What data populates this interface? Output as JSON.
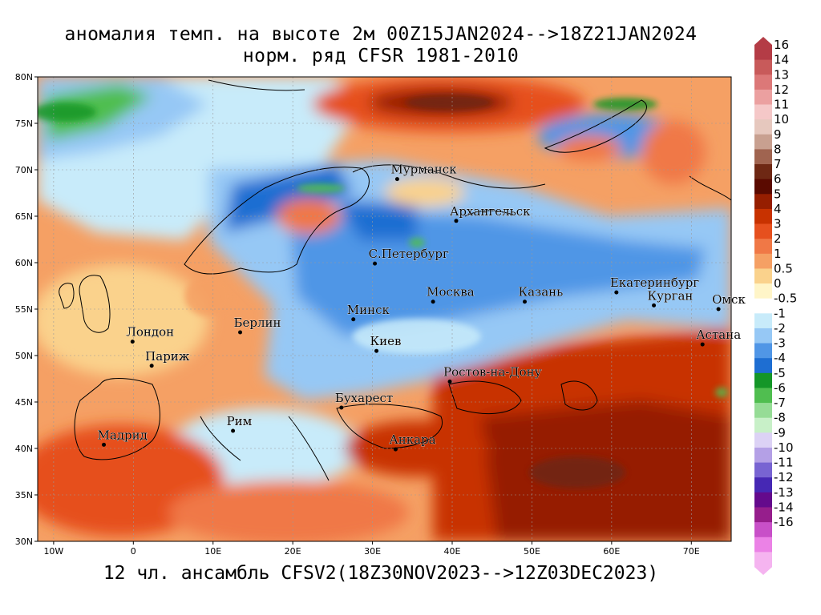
{
  "header": {
    "title_line1": "аномалия темп. на высоте 2м 00Z15JAN2024-->18Z21JAN2024",
    "title_line2": "норм. ряд CFSR 1981-2010"
  },
  "footer": {
    "subtitle": "12 чл. ансамбль CFSV2(18Z30NOV2023-->12Z03DEC2023)"
  },
  "map": {
    "lon_range": [
      -12,
      75
    ],
    "lat_range": [
      30,
      80
    ],
    "lat_ticks": [
      {
        "value": 80,
        "label": "80N"
      },
      {
        "value": 75,
        "label": "75N"
      },
      {
        "value": 70,
        "label": "70N"
      },
      {
        "value": 65,
        "label": "65N"
      },
      {
        "value": 60,
        "label": "60N"
      },
      {
        "value": 55,
        "label": "55N"
      },
      {
        "value": 50,
        "label": "50N"
      },
      {
        "value": 45,
        "label": "45N"
      },
      {
        "value": 40,
        "label": "40N"
      },
      {
        "value": 35,
        "label": "35N"
      },
      {
        "value": 30,
        "label": "30N"
      }
    ],
    "lon_ticks": [
      {
        "value": -10,
        "label": "10W"
      },
      {
        "value": 0,
        "label": "0"
      },
      {
        "value": 10,
        "label": "10E"
      },
      {
        "value": 20,
        "label": "20E"
      },
      {
        "value": 30,
        "label": "30E"
      },
      {
        "value": 40,
        "label": "40E"
      },
      {
        "value": 50,
        "label": "50E"
      },
      {
        "value": 60,
        "label": "60E"
      },
      {
        "value": 70,
        "label": "70E"
      }
    ],
    "cities": [
      {
        "name": "Мурманск",
        "lon": 33.1,
        "lat": 69.0
      },
      {
        "name": "Архангельск",
        "lon": 40.5,
        "lat": 64.5
      },
      {
        "name": "С.Петербург",
        "lon": 30.3,
        "lat": 59.9
      },
      {
        "name": "Москва",
        "lon": 37.6,
        "lat": 55.8
      },
      {
        "name": "Казань",
        "lon": 49.1,
        "lat": 55.8
      },
      {
        "name": "Екатеринбург",
        "lon": 60.6,
        "lat": 56.8
      },
      {
        "name": "Курган",
        "lon": 65.3,
        "lat": 55.4
      },
      {
        "name": "Омск",
        "lon": 73.4,
        "lat": 55.0
      },
      {
        "name": "Астана",
        "lon": 71.4,
        "lat": 51.2
      },
      {
        "name": "Минск",
        "lon": 27.6,
        "lat": 53.9
      },
      {
        "name": "Киев",
        "lon": 30.5,
        "lat": 50.5
      },
      {
        "name": "Берлин",
        "lon": 13.4,
        "lat": 52.5
      },
      {
        "name": "Лондон",
        "lon": -0.1,
        "lat": 51.5
      },
      {
        "name": "Париж",
        "lon": 2.3,
        "lat": 48.9
      },
      {
        "name": "Ростов-на-Дону",
        "lon": 39.7,
        "lat": 47.2
      },
      {
        "name": "Бухарест",
        "lon": 26.1,
        "lat": 44.4
      },
      {
        "name": "Рим",
        "lon": 12.5,
        "lat": 41.9
      },
      {
        "name": "Мадрид",
        "lon": -3.7,
        "lat": 40.4
      },
      {
        "name": "Анкара",
        "lon": 32.9,
        "lat": 39.9
      }
    ]
  },
  "colorbar": {
    "levels": [
      {
        "label": "16",
        "color": "#b43c46"
      },
      {
        "label": "14",
        "color": "#c85a5a"
      },
      {
        "label": "13",
        "color": "#dc7878"
      },
      {
        "label": "12",
        "color": "#eba0a0"
      },
      {
        "label": "11",
        "color": "#f5c8c8"
      },
      {
        "label": "10",
        "color": "#e6c8be"
      },
      {
        "label": "9",
        "color": "#c8a090"
      },
      {
        "label": "8",
        "color": "#a06450"
      },
      {
        "label": "7",
        "color": "#6e2814"
      },
      {
        "label": "6",
        "color": "#5a0a00"
      },
      {
        "label": "5",
        "color": "#961e00"
      },
      {
        "label": "4",
        "color": "#c83200"
      },
      {
        "label": "3",
        "color": "#e6501e"
      },
      {
        "label": "2",
        "color": "#f07846"
      },
      {
        "label": "1",
        "color": "#f5a064"
      },
      {
        "label": "0.5",
        "color": "#fad28c"
      },
      {
        "label": "0",
        "color": "#fff5c8"
      },
      {
        "label": "-0.5",
        "color": "#ffffff"
      },
      {
        "label": "-1",
        "color": "#c8ebfa"
      },
      {
        "label": "-2",
        "color": "#96c8f5"
      },
      {
        "label": "-3",
        "color": "#5096e6"
      },
      {
        "label": "-4",
        "color": "#1e6ed2"
      },
      {
        "label": "-5",
        "color": "#149628"
      },
      {
        "label": "-6",
        "color": "#50be50"
      },
      {
        "label": "-7",
        "color": "#96dc96"
      },
      {
        "label": "-8",
        "color": "#c8f0c8"
      },
      {
        "label": "-9",
        "color": "#dcd2f5"
      },
      {
        "label": "-10",
        "color": "#b4a0e6"
      },
      {
        "label": "-11",
        "color": "#7864d2"
      },
      {
        "label": "-12",
        "color": "#4628b4"
      },
      {
        "label": "-13",
        "color": "#640a8c"
      },
      {
        "label": "-14",
        "color": "#961e8c"
      },
      {
        "label": "-16",
        "color": "#c850c8"
      },
      {
        "label": "",
        "color": "#eb82e6"
      },
      {
        "label": "",
        "color": "#f5b4f0"
      }
    ]
  }
}
